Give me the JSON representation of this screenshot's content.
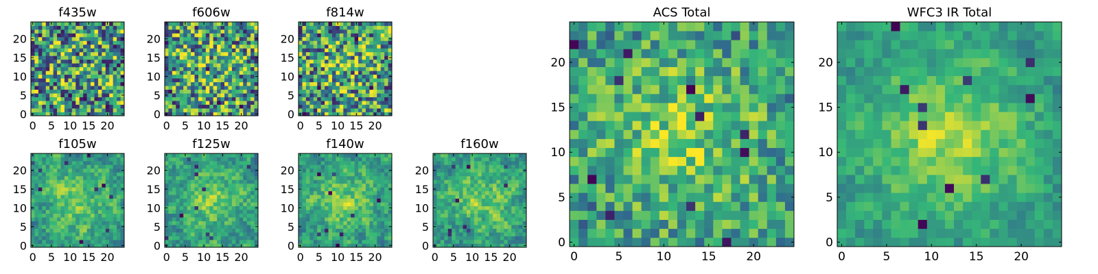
{
  "figure": {
    "colormap": [
      "#440154",
      "#31688e",
      "#35b779",
      "#fde725"
    ],
    "frame_color": "#000000"
  },
  "chart_data": [
    {
      "type": "heatmap",
      "title": "f435w",
      "grid_size": 25,
      "xlim": [
        -0.5,
        24.5
      ],
      "ylim": [
        -0.5,
        24.5
      ],
      "xticks": [
        0,
        5,
        10,
        15,
        20
      ],
      "yticks": [
        0,
        5,
        10,
        15,
        20
      ],
      "noise": 0.95,
      "smooth": 0,
      "blob_strength": 0.05,
      "n_dark": 14,
      "seed": 11
    },
    {
      "type": "heatmap",
      "title": "f606w",
      "grid_size": 25,
      "xlim": [
        -0.5,
        24.5
      ],
      "ylim": [
        -0.5,
        24.5
      ],
      "xticks": [
        0,
        5,
        10,
        15,
        20
      ],
      "yticks": [
        0,
        5,
        10,
        15,
        20
      ],
      "noise": 0.9,
      "smooth": 0,
      "blob_strength": 0.12,
      "n_dark": 12,
      "seed": 23
    },
    {
      "type": "heatmap",
      "title": "f814w",
      "grid_size": 25,
      "xlim": [
        -0.5,
        24.5
      ],
      "ylim": [
        -0.5,
        24.5
      ],
      "xticks": [
        0,
        5,
        10,
        15,
        20
      ],
      "yticks": [
        0,
        5,
        10,
        15,
        20
      ],
      "noise": 0.9,
      "smooth": 0,
      "blob_strength": 0.12,
      "n_dark": 18,
      "seed": 37
    },
    {
      "type": "heatmap",
      "title": "f105w",
      "grid_size": 25,
      "xlim": [
        -0.5,
        24.5
      ],
      "ylim": [
        -0.5,
        24.5
      ],
      "xticks": [
        0,
        5,
        10,
        15,
        20
      ],
      "yticks": [
        0,
        5,
        10,
        15,
        20
      ],
      "noise": 0.6,
      "smooth": 1,
      "blob_strength": 0.25,
      "n_dark": 10,
      "seed": 41
    },
    {
      "type": "heatmap",
      "title": "f125w",
      "grid_size": 25,
      "xlim": [
        -0.5,
        24.5
      ],
      "ylim": [
        -0.5,
        24.5
      ],
      "xticks": [
        0,
        5,
        10,
        15,
        20
      ],
      "yticks": [
        0,
        5,
        10,
        15,
        20
      ],
      "noise": 0.6,
      "smooth": 1,
      "blob_strength": 0.25,
      "n_dark": 10,
      "seed": 53
    },
    {
      "type": "heatmap",
      "title": "f140w",
      "grid_size": 25,
      "xlim": [
        -0.5,
        24.5
      ],
      "ylim": [
        -0.5,
        24.5
      ],
      "xticks": [
        0,
        5,
        10,
        15,
        20
      ],
      "yticks": [
        0,
        5,
        10,
        15,
        20
      ],
      "noise": 0.6,
      "smooth": 1,
      "blob_strength": 0.25,
      "n_dark": 9,
      "seed": 67
    },
    {
      "type": "heatmap",
      "title": "f160w",
      "grid_size": 25,
      "xlim": [
        -0.5,
        24.5
      ],
      "ylim": [
        -0.5,
        24.5
      ],
      "xticks": [
        0,
        5,
        10,
        15,
        20
      ],
      "yticks": [
        0,
        5,
        10,
        15,
        20
      ],
      "noise": 0.6,
      "smooth": 1,
      "blob_strength": 0.25,
      "n_dark": 9,
      "seed": 79
    },
    {
      "type": "heatmap",
      "title": "ACS Total",
      "grid_size": 25,
      "xlim": [
        -0.5,
        24.5
      ],
      "ylim": [
        -0.5,
        24.5
      ],
      "xticks": [
        0,
        5,
        10,
        15,
        20
      ],
      "yticks": [
        0,
        5,
        10,
        15,
        20
      ],
      "noise": 0.55,
      "smooth": 0,
      "blob_strength": 0.3,
      "n_dark": 12,
      "seed": 83
    },
    {
      "type": "heatmap",
      "title": "WFC3 IR Total",
      "grid_size": 25,
      "xlim": [
        -0.5,
        24.5
      ],
      "ylim": [
        -0.5,
        24.5
      ],
      "xticks": [
        0,
        5,
        10,
        15,
        20
      ],
      "yticks": [
        0,
        5,
        10,
        15,
        20
      ],
      "noise": 0.45,
      "smooth": 1,
      "blob_strength": 0.35,
      "n_dark": 10,
      "seed": 97
    }
  ]
}
